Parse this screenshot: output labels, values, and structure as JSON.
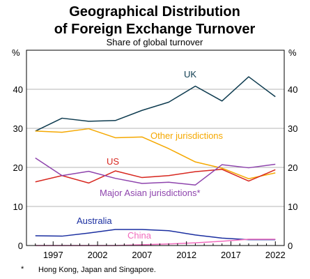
{
  "chart_data": {
    "type": "line",
    "title_lines": [
      "Geographical Distribution",
      "of Foreign Exchange Turnover"
    ],
    "subtitle": "Share of global turnover",
    "y_unit": "%",
    "x": [
      1995,
      1998,
      2001,
      2004,
      2007,
      2010,
      2013,
      2016,
      2019,
      2022
    ],
    "x_ticks": [
      "1997",
      "2002",
      "2007",
      "2012",
      "2017",
      "2022"
    ],
    "x_tick_values": [
      1997,
      2002,
      2007,
      2012,
      2017,
      2022
    ],
    "xlim": [
      1994,
      2023
    ],
    "ylim": [
      0,
      50
    ],
    "y_ticks": [
      "0",
      "10",
      "20",
      "30",
      "40"
    ],
    "y_tick_values": [
      0,
      10,
      20,
      30,
      40
    ],
    "grid": true,
    "series": [
      {
        "name": "UK",
        "color": "#0d3b4f",
        "values": [
          29.3,
          32.6,
          31.8,
          32.0,
          34.6,
          36.7,
          40.8,
          37.0,
          43.2,
          38.1
        ]
      },
      {
        "name": "Other jurisdictions",
        "color": "#f5a800",
        "values": [
          29.3,
          29.0,
          29.9,
          27.6,
          27.8,
          24.8,
          21.4,
          19.8,
          17.1,
          18.6
        ]
      },
      {
        "name": "US",
        "color": "#d7261e",
        "values": [
          16.3,
          17.9,
          16.0,
          19.1,
          17.4,
          17.9,
          18.9,
          19.5,
          16.5,
          19.4
        ]
      },
      {
        "name": "Major Asian jurisdictions*",
        "color": "#8e44ad",
        "values": [
          22.4,
          17.9,
          19.0,
          17.2,
          15.9,
          16.2,
          15.5,
          20.7,
          19.9,
          20.8
        ]
      },
      {
        "name": "Australia",
        "color": "#1a2ea0",
        "values": [
          2.5,
          2.4,
          3.2,
          4.1,
          4.1,
          3.8,
          2.7,
          1.9,
          1.5,
          1.5
        ]
      },
      {
        "name": "China",
        "color": "#f06bbd",
        "values": [
          0.0,
          0.0,
          0.0,
          0.0,
          0.2,
          0.4,
          0.7,
          1.1,
          1.6,
          1.6
        ]
      }
    ],
    "footnote_marker": "*",
    "footnote": "Hong Kong, Japan and Singapore."
  }
}
